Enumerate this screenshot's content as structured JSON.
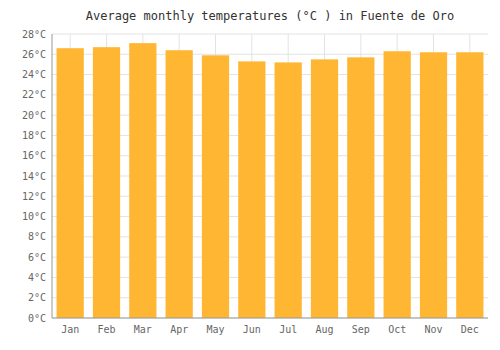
{
  "chart_data": {
    "type": "bar",
    "title": "Average monthly temperatures (°C ) in Fuente de Oro",
    "categories": [
      "Jan",
      "Feb",
      "Mar",
      "Apr",
      "May",
      "Jun",
      "Jul",
      "Aug",
      "Sep",
      "Oct",
      "Nov",
      "Dec"
    ],
    "values": [
      26.6,
      26.7,
      27.1,
      26.4,
      25.9,
      25.3,
      25.2,
      25.5,
      25.7,
      26.3,
      26.2,
      26.2
    ],
    "color": "#FFB733",
    "ylim": [
      0,
      28
    ],
    "yticks": [
      {
        "value": 0,
        "label": "0°C"
      },
      {
        "value": 2,
        "label": "2°C"
      },
      {
        "value": 4,
        "label": "4°C"
      },
      {
        "value": 6,
        "label": "6°C"
      },
      {
        "value": 8,
        "label": "8°C"
      },
      {
        "value": 10,
        "label": "10°C"
      },
      {
        "value": 12,
        "label": "12°C"
      },
      {
        "value": 14,
        "label": "14°C"
      },
      {
        "value": 16,
        "label": "16°C"
      },
      {
        "value": 18,
        "label": "18°C"
      },
      {
        "value": 20,
        "label": "20°C"
      },
      {
        "value": 22,
        "label": "22°C"
      },
      {
        "value": 24,
        "label": "24°C"
      },
      {
        "value": 26,
        "label": "26°C"
      },
      {
        "value": 28,
        "label": "28°C"
      }
    ],
    "grid": true
  }
}
